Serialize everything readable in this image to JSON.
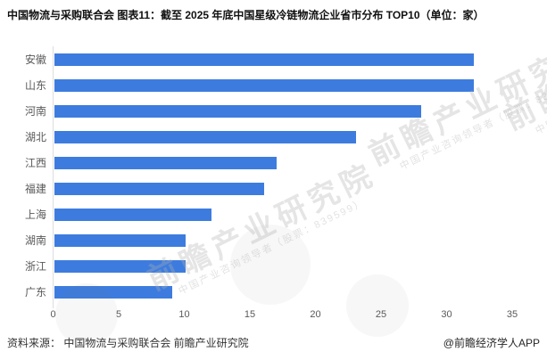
{
  "title": "中国物流与采购联合会 图表11：截至 2025 年底中国星级冷链物流企业省市分布 TOP10（单位：家）",
  "footer": {
    "source_label": "资料来源： 中国物流与采购联合会 前瞻产业研究院",
    "credit_label": "@前瞻经济学人APP"
  },
  "watermark": {
    "text": "前瞻产业研究院",
    "subtext": "中国产业咨询领导者（股票：839599）"
  },
  "colors": {
    "bar": "#3d7cde",
    "axis_line": "#dcdcdc",
    "label_gray": "#595959"
  },
  "chart_data": {
    "type": "bar",
    "orientation": "horizontal",
    "title": "中国物流与采购联合会 图表11：截至 2025 年底中国星级冷链物流企业省市分布 TOP10（单位：家）",
    "categories": [
      "安徽",
      "山东",
      "河南",
      "湖北",
      "江西",
      "福建",
      "上海",
      "湖南",
      "浙江",
      "广东"
    ],
    "values": [
      32,
      32,
      28,
      23,
      17,
      16,
      12,
      10,
      10,
      9
    ],
    "unit": "家",
    "xlabel": "",
    "ylabel": "",
    "xlim": [
      0,
      35
    ],
    "xticks": [
      0,
      5,
      10,
      15,
      20,
      25,
      30,
      35
    ],
    "grid": false,
    "legend": "none"
  }
}
